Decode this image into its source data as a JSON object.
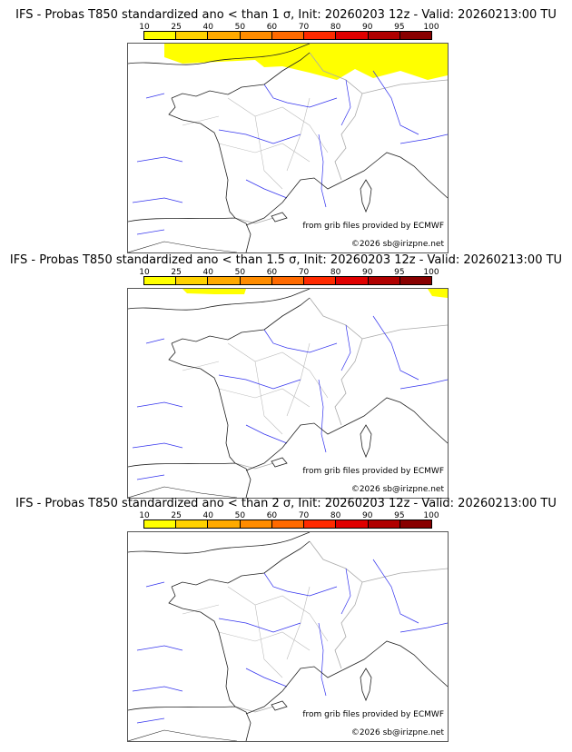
{
  "colorbar": {
    "labels": [
      "10",
      "25",
      "40",
      "50",
      "60",
      "70",
      "80",
      "90",
      "95",
      "100"
    ],
    "colors": [
      "#ffff00",
      "#ffd200",
      "#ffaa00",
      "#ff8c00",
      "#ff6a00",
      "#ff2a00",
      "#e00000",
      "#b00000",
      "#880000",
      "#600000"
    ]
  },
  "panels": [
    {
      "title": "IFS - Probas T850  standardized ano < than 1 σ, Init: 20260203 12z - Valid: 20260213:00 TU",
      "highlight": "large"
    },
    {
      "title": "IFS - Probas T850  standardized ano < than 1.5 σ, Init: 20260203 12z - Valid: 20260213:00 TU",
      "highlight": "small"
    },
    {
      "title": "IFS - Probas T850  standardized ano < than 2 σ, Init: 20260203 12z - Valid: 20260213:00 TU",
      "highlight": "none"
    }
  ],
  "credits": {
    "source": "from grib files provided by ECMWF",
    "copyright": "©2026 sb@irizpne.net"
  }
}
